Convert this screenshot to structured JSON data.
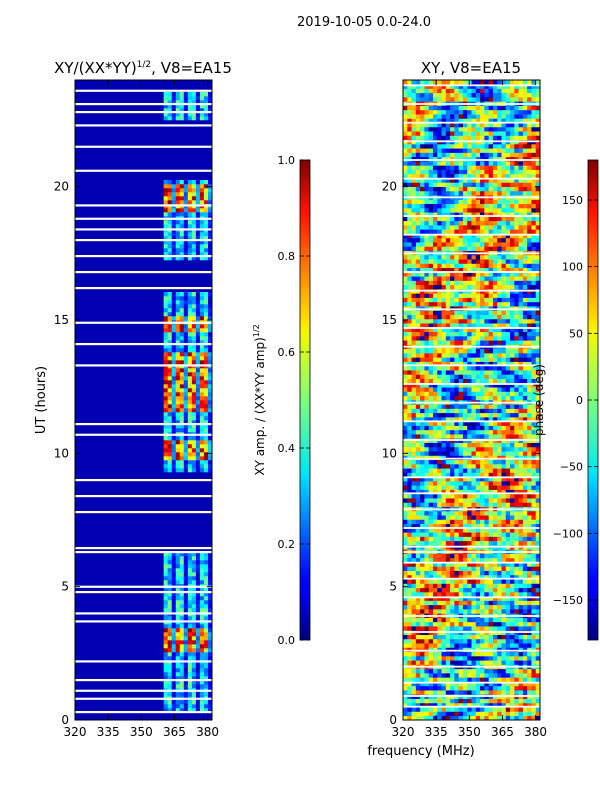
{
  "figure": {
    "suptitle": "2019-10-05 0.0-24.0",
    "xlabel": "frequency (MHz)"
  },
  "chart_data": [
    {
      "type": "heatmap",
      "title_main": "XY/(XX*YY)",
      "title_sup": "1/2",
      "title_rest": ", V8=EA15",
      "xlabel": "",
      "ylabel": "UT (hours)",
      "xlim": [
        320,
        382
      ],
      "ylim": [
        0,
        24
      ],
      "xticks": [
        320,
        335,
        350,
        365,
        380
      ],
      "yticks": [
        0,
        5,
        10,
        15,
        20
      ],
      "colorbar": {
        "label_main": "XY amp. / (XX*YY amp)",
        "label_sup": "1/2",
        "range": [
          0.0,
          1.0
        ],
        "ticks": [
          0.0,
          0.2,
          0.4,
          0.6,
          0.8,
          1.0
        ],
        "tick_labels": [
          "0.0",
          "0.2",
          "0.4",
          "0.6",
          "0.8",
          "1.0"
        ],
        "colormap": "jet"
      },
      "background_value": 0.05,
      "high_band_mhz": [
        360,
        382
      ],
      "high_band_hours": [
        [
          0.3,
          6.3
        ],
        [
          9.3,
          16.0
        ],
        [
          17.3,
          20.3
        ],
        [
          22.5,
          23.5
        ]
      ],
      "strong_hours": [
        [
          2.6,
          3.5
        ],
        [
          9.8,
          10.5
        ],
        [
          11.5,
          13.8
        ],
        [
          14.5,
          15.2
        ],
        [
          19.0,
          20.1
        ]
      ],
      "gaps_hours": [
        0.3,
        0.8,
        1.1,
        1.5,
        2.2,
        3.7,
        4.0,
        4.8,
        5.0,
        6.3,
        6.45,
        7.8,
        8.4,
        9.0,
        10.7,
        11.1,
        13.3,
        14.1,
        14.9,
        16.2,
        16.8,
        17.4,
        18.0,
        18.4,
        18.8,
        19.3,
        20.6,
        21.5,
        22.3,
        22.8,
        23.1,
        23.6
      ]
    },
    {
      "type": "heatmap",
      "title": "XY, V8=EA15",
      "xlabel": "frequency (MHz)",
      "ylabel": "",
      "xlim": [
        320,
        382
      ],
      "ylim": [
        0,
        24
      ],
      "xticks": [
        320,
        335,
        350,
        365,
        380
      ],
      "yticks": [
        0,
        5,
        10,
        15,
        20
      ],
      "colorbar": {
        "label": "phase (deg)",
        "range": [
          -180,
          180
        ],
        "ticks": [
          -150,
          -100,
          -50,
          0,
          50,
          100,
          150
        ],
        "tick_labels": [
          "−150",
          "−100",
          "−50",
          "0",
          "50",
          "100",
          "150"
        ],
        "colormap": "jet"
      },
      "gaps_hours": [
        0.5,
        0.9,
        1.4,
        2.0,
        2.6,
        3.3,
        3.9,
        4.6,
        5.3,
        5.9,
        6.3,
        6.5,
        7.2,
        7.9,
        8.5,
        9.1,
        9.8,
        10.5,
        11.2,
        11.9,
        12.6,
        13.3,
        14.0,
        14.7,
        15.4,
        16.1,
        16.8,
        17.5,
        18.2,
        18.9,
        19.6,
        20.3,
        21.0,
        21.7,
        22.4,
        23.1,
        23.8
      ]
    }
  ]
}
